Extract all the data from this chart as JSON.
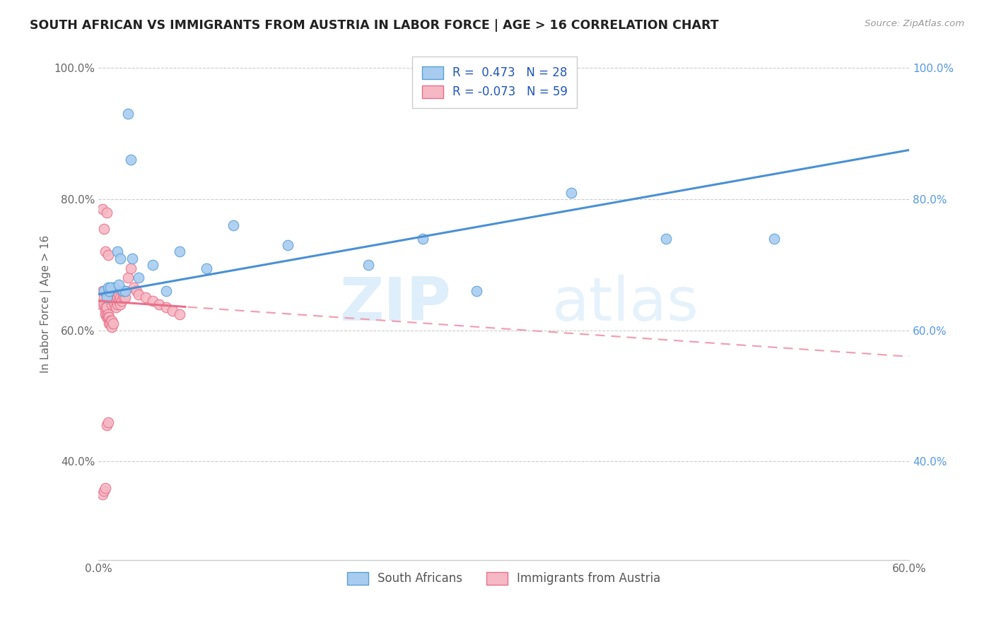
{
  "title": "SOUTH AFRICAN VS IMMIGRANTS FROM AUSTRIA IN LABOR FORCE | AGE > 16 CORRELATION CHART",
  "source": "Source: ZipAtlas.com",
  "ylabel": "In Labor Force | Age > 16",
  "x_min": 0.0,
  "x_max": 0.6,
  "y_min": 0.25,
  "y_max": 1.03,
  "x_ticks": [
    0.0,
    0.1,
    0.2,
    0.3,
    0.4,
    0.5,
    0.6
  ],
  "x_tick_labels": [
    "0.0%",
    "",
    "",
    "",
    "",
    "",
    "60.0%"
  ],
  "y_ticks": [
    0.4,
    0.6,
    0.8,
    1.0
  ],
  "y_tick_labels": [
    "40.0%",
    "60.0%",
    "80.0%",
    "100.0%"
  ],
  "blue_R": 0.473,
  "blue_N": 28,
  "pink_R": -0.073,
  "pink_N": 59,
  "blue_color": "#A8CCF0",
  "pink_color": "#F5B8C4",
  "blue_edge_color": "#5A9FD4",
  "pink_edge_color": "#E8708A",
  "blue_line_color": "#4A90D4",
  "pink_line_solid_color": "#E8708A",
  "pink_line_dashed_color": "#F0A0B4",
  "watermark_zip": "ZIP",
  "watermark_atlas": "atlas",
  "legend_label_blue": "South Africans",
  "legend_label_pink": "Immigrants from Austria",
  "blue_x": [
    0.004,
    0.006,
    0.008,
    0.01,
    0.012,
    0.014,
    0.016,
    0.018,
    0.02,
    0.022,
    0.024,
    0.03,
    0.04,
    0.05,
    0.06,
    0.08,
    0.1,
    0.14,
    0.2,
    0.24,
    0.28,
    0.35,
    0.42,
    0.5,
    0.007,
    0.009,
    0.015,
    0.025
  ],
  "blue_y": [
    0.66,
    0.65,
    0.66,
    0.665,
    0.665,
    0.72,
    0.71,
    0.66,
    0.66,
    0.93,
    0.86,
    0.68,
    0.7,
    0.66,
    0.72,
    0.695,
    0.76,
    0.73,
    0.7,
    0.74,
    0.66,
    0.81,
    0.74,
    0.74,
    0.665,
    0.665,
    0.67,
    0.71
  ],
  "pink_x": [
    0.002,
    0.003,
    0.004,
    0.004,
    0.005,
    0.005,
    0.005,
    0.006,
    0.006,
    0.006,
    0.007,
    0.007,
    0.008,
    0.008,
    0.008,
    0.009,
    0.009,
    0.01,
    0.01,
    0.01,
    0.011,
    0.011,
    0.012,
    0.012,
    0.013,
    0.013,
    0.014,
    0.014,
    0.015,
    0.015,
    0.016,
    0.016,
    0.017,
    0.018,
    0.018,
    0.019,
    0.02,
    0.02,
    0.022,
    0.024,
    0.026,
    0.028,
    0.03,
    0.035,
    0.04,
    0.045,
    0.05,
    0.055,
    0.06,
    0.003,
    0.004,
    0.005,
    0.006,
    0.007,
    0.003,
    0.004,
    0.005,
    0.007,
    0.006
  ],
  "pink_y": [
    0.64,
    0.66,
    0.65,
    0.64,
    0.635,
    0.63,
    0.625,
    0.62,
    0.625,
    0.635,
    0.625,
    0.62,
    0.615,
    0.61,
    0.62,
    0.615,
    0.61,
    0.605,
    0.615,
    0.64,
    0.61,
    0.645,
    0.64,
    0.65,
    0.635,
    0.645,
    0.64,
    0.65,
    0.645,
    0.655,
    0.64,
    0.65,
    0.645,
    0.655,
    0.66,
    0.65,
    0.66,
    0.65,
    0.68,
    0.695,
    0.665,
    0.66,
    0.655,
    0.65,
    0.645,
    0.64,
    0.635,
    0.63,
    0.625,
    0.35,
    0.355,
    0.36,
    0.455,
    0.46,
    0.785,
    0.755,
    0.72,
    0.715,
    0.78
  ],
  "grid_color": "#CCCCCC",
  "background_color": "#FFFFFF"
}
